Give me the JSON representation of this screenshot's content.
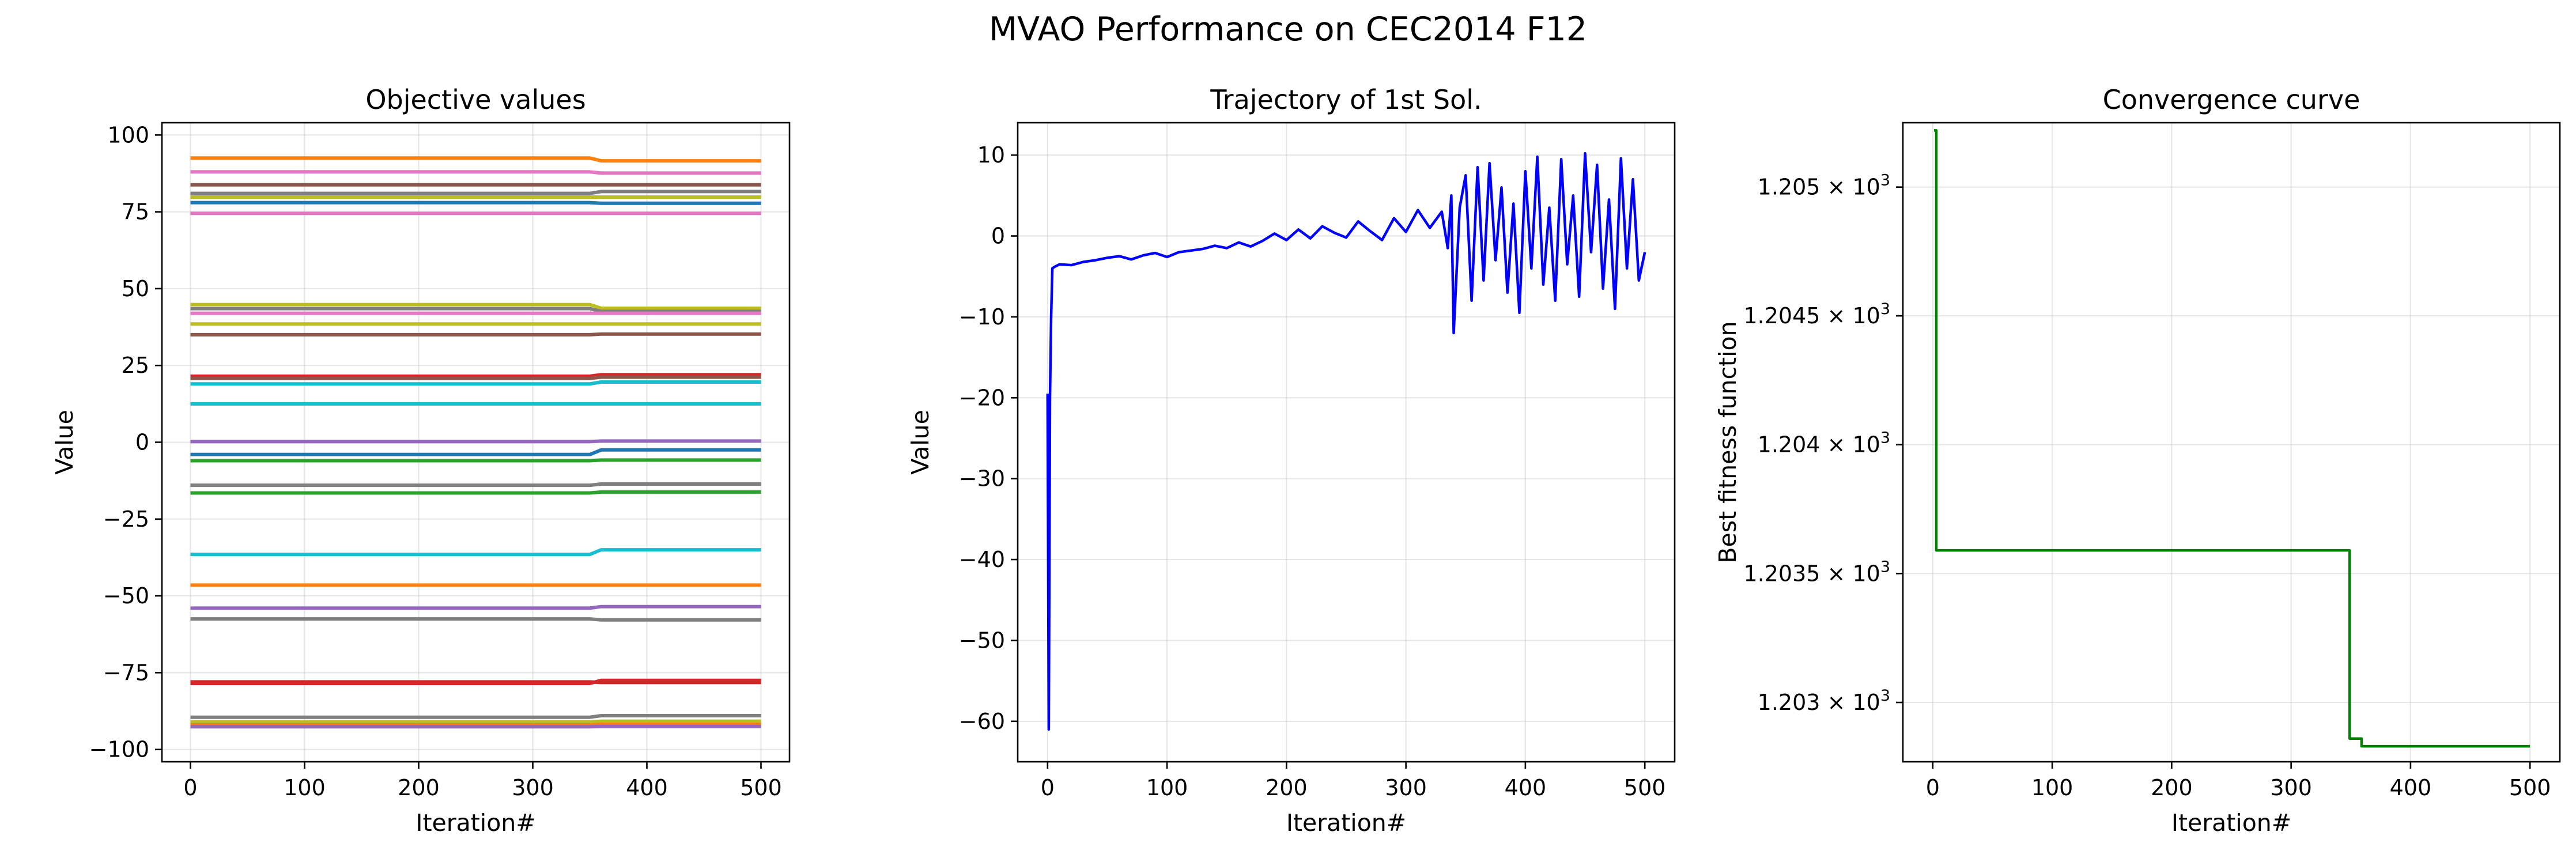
{
  "figure": {
    "suptitle": "MVAO Performance on CEC2014 F12"
  },
  "chart_data": [
    {
      "type": "line",
      "title": "Objective values",
      "xlabel": "Iteration#",
      "ylabel": "Value",
      "xlim": [
        -25,
        525
      ],
      "ylim": [
        -104,
        104
      ],
      "xticks": [
        0,
        100,
        200,
        300,
        400,
        500
      ],
      "xtick_labels": [
        "0",
        "100",
        "200",
        "300",
        "400",
        "500"
      ],
      "yticks": [
        100,
        75,
        50,
        25,
        0,
        -25,
        -50,
        -75,
        -100
      ],
      "ytick_labels": [
        "100",
        "75",
        "50",
        "25",
        "0",
        "−25",
        "−50",
        "−75",
        "−100"
      ],
      "grid": true,
      "legend": "none",
      "x": [
        0,
        350,
        360,
        500
      ],
      "series": [
        {
          "values": [
            92.5,
            92.5,
            91.6,
            91.6
          ],
          "color": "#ff7f0e"
        },
        {
          "values": [
            88.0,
            88.0,
            87.6,
            87.6
          ],
          "color": "#e377c2"
        },
        {
          "values": [
            83.8,
            83.8,
            83.8,
            83.8
          ],
          "color": "#8c564b"
        },
        {
          "values": [
            81.0,
            81.0,
            81.6,
            81.6
          ],
          "color": "#7f7f7f"
        },
        {
          "values": [
            79.8,
            79.8,
            79.8,
            79.8
          ],
          "color": "#bcbd22"
        },
        {
          "values": [
            78.0,
            78.0,
            77.8,
            77.8
          ],
          "color": "#1f77b4"
        },
        {
          "values": [
            74.5,
            74.5,
            74.5,
            74.5
          ],
          "color": "#e377c2"
        },
        {
          "values": [
            44.8,
            44.8,
            43.6,
            43.6
          ],
          "color": "#bcbd22"
        },
        {
          "values": [
            43.5,
            43.5,
            42.6,
            42.6
          ],
          "color": "#7f7f7f"
        },
        {
          "values": [
            42.0,
            42.0,
            42.0,
            42.0
          ],
          "color": "#e377c2"
        },
        {
          "values": [
            38.5,
            38.5,
            38.5,
            38.5
          ],
          "color": "#bcbd22"
        },
        {
          "values": [
            35.0,
            35.0,
            35.2,
            35.2
          ],
          "color": "#8c564b"
        },
        {
          "values": [
            21.5,
            21.5,
            22.0,
            22.0
          ],
          "color": "#d62728"
        },
        {
          "values": [
            20.8,
            20.8,
            21.2,
            21.2
          ],
          "color": "#8c564b"
        },
        {
          "values": [
            19.0,
            19.0,
            19.6,
            19.6
          ],
          "color": "#17becf"
        },
        {
          "values": [
            12.5,
            12.5,
            12.5,
            12.5
          ],
          "color": "#17becf"
        },
        {
          "values": [
            0.2,
            0.2,
            0.4,
            0.4
          ],
          "color": "#9467bd"
        },
        {
          "values": [
            -4.0,
            -4.0,
            -2.5,
            -2.5
          ],
          "color": "#1f77b4"
        },
        {
          "values": [
            -6.0,
            -6.0,
            -5.8,
            -5.8
          ],
          "color": "#2ca02c"
        },
        {
          "values": [
            -14.0,
            -14.0,
            -13.6,
            -13.6
          ],
          "color": "#7f7f7f"
        },
        {
          "values": [
            -16.5,
            -16.5,
            -16.2,
            -16.2
          ],
          "color": "#2ca02c"
        },
        {
          "values": [
            -36.5,
            -36.5,
            -35.0,
            -35.0
          ],
          "color": "#17becf"
        },
        {
          "values": [
            -46.5,
            -46.5,
            -46.5,
            -46.5
          ],
          "color": "#ff7f0e"
        },
        {
          "values": [
            -54.0,
            -54.0,
            -53.5,
            -53.5
          ],
          "color": "#9467bd"
        },
        {
          "values": [
            -57.5,
            -57.5,
            -57.8,
            -57.8
          ],
          "color": "#7f7f7f"
        },
        {
          "values": [
            -78.5,
            -78.5,
            -77.5,
            -77.5
          ],
          "color": "#d62728"
        },
        {
          "values": [
            -78.0,
            -78.0,
            -78.2,
            -78.2
          ],
          "color": "#d62728"
        },
        {
          "values": [
            -89.5,
            -89.5,
            -89.0,
            -89.0
          ],
          "color": "#7f7f7f"
        },
        {
          "values": [
            -91.0,
            -91.0,
            -90.8,
            -90.8
          ],
          "color": "#bcbd22"
        },
        {
          "values": [
            -92.0,
            -92.0,
            -91.8,
            -91.8
          ],
          "color": "#ff7f0e"
        },
        {
          "values": [
            -92.6,
            -92.6,
            -92.5,
            -92.5
          ],
          "color": "#9467bd"
        }
      ]
    },
    {
      "type": "line",
      "title": "Trajectory of 1st Sol.",
      "xlabel": "Iteration#",
      "ylabel": "Value",
      "xlim": [
        -25,
        525
      ],
      "ylim": [
        -65,
        14
      ],
      "xticks": [
        0,
        100,
        200,
        300,
        400,
        500
      ],
      "xtick_labels": [
        "0",
        "100",
        "200",
        "300",
        "400",
        "500"
      ],
      "yticks": [
        10,
        0,
        -10,
        -20,
        -30,
        -40,
        -50,
        -60
      ],
      "ytick_labels": [
        "10",
        "0",
        "−10",
        "−20",
        "−30",
        "−40",
        "−50",
        "−60"
      ],
      "grid": true,
      "legend": "none",
      "series": [
        {
          "color": "#0000ff",
          "x": [
            0,
            1,
            2,
            3,
            4,
            6,
            10,
            20,
            30,
            40,
            50,
            60,
            70,
            80,
            90,
            100,
            110,
            120,
            130,
            140,
            150,
            160,
            170,
            180,
            190,
            200,
            210,
            220,
            230,
            240,
            250,
            260,
            270,
            280,
            290,
            300,
            310,
            320,
            330,
            335,
            338,
            340,
            345,
            350,
            355,
            360,
            365,
            370,
            375,
            380,
            385,
            390,
            395,
            400,
            405,
            410,
            415,
            420,
            425,
            430,
            435,
            440,
            445,
            450,
            455,
            460,
            465,
            470,
            475,
            480,
            485,
            490,
            495,
            500
          ],
          "values": [
            -19.5,
            -61.0,
            -20.0,
            -10.0,
            -4.0,
            -3.8,
            -3.5,
            -3.6,
            -3.2,
            -3.0,
            -2.7,
            -2.5,
            -2.9,
            -2.4,
            -2.1,
            -2.6,
            -2.0,
            -1.8,
            -1.6,
            -1.2,
            -1.5,
            -0.8,
            -1.3,
            -0.6,
            0.3,
            -0.5,
            0.8,
            -0.3,
            1.2,
            0.4,
            -0.2,
            1.8,
            0.6,
            -0.5,
            2.2,
            0.5,
            3.2,
            1.0,
            3.0,
            -1.5,
            5.0,
            -12.0,
            3.5,
            7.5,
            -8.0,
            8.5,
            -5.5,
            9.0,
            -3.0,
            6.0,
            -7.0,
            4.0,
            -9.5,
            8.0,
            -4.0,
            9.8,
            -6.0,
            3.5,
            -8.0,
            9.5,
            -3.5,
            5.0,
            -7.5,
            10.2,
            -2.0,
            8.8,
            -6.5,
            4.5,
            -9.0,
            9.6,
            -4.0,
            7.0,
            -5.5,
            -2.0
          ]
        }
      ]
    },
    {
      "type": "line",
      "title": "Convergence curve",
      "xlabel": "Iteration#",
      "ylabel": "Best fitness function",
      "xlim": [
        -25,
        525
      ],
      "ylim": [
        1202.77,
        1205.25
      ],
      "yscale": "log",
      "xticks": [
        0,
        100,
        200,
        300,
        400,
        500
      ],
      "xtick_labels": [
        "0",
        "100",
        "200",
        "300",
        "400",
        "500"
      ],
      "yticks": [
        1205,
        1204.5,
        1204,
        1203.5,
        1203
      ],
      "ytick_labels": [
        "1.205",
        "1.2045",
        "1.204",
        "1.2035",
        "1.203"
      ],
      "ytick_exponent": "3",
      "ytick_times": "×",
      "ytick_base": "10",
      "grid": true,
      "legend": "none",
      "series": [
        {
          "color": "#008000",
          "x": [
            1,
            3,
            3,
            349,
            349,
            359,
            359,
            500
          ],
          "values": [
            1205.22,
            1205.22,
            1203.59,
            1203.59,
            1202.86,
            1202.86,
            1202.83,
            1202.83
          ]
        }
      ]
    }
  ]
}
